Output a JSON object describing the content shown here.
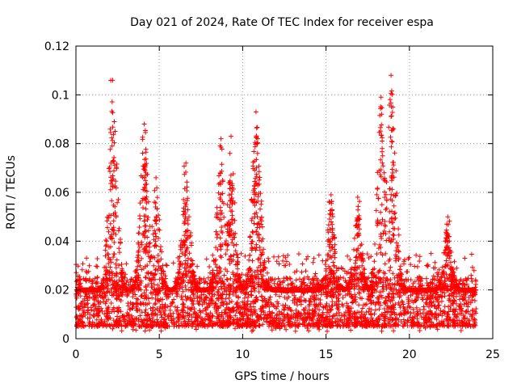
{
  "chart_data": {
    "type": "scatter",
    "title": "Day 021 of 2024, Rate Of TEC Index for receiver espa",
    "xlabel": "GPS time / hours",
    "ylabel": "ROTI / TECUs",
    "xlim": [
      0,
      25
    ],
    "ylim": [
      0,
      0.12
    ],
    "xticks": [
      0,
      5,
      10,
      15,
      20,
      25
    ],
    "xtick_labels": [
      "0",
      "5",
      "10",
      "15",
      "20",
      "25"
    ],
    "yticks": [
      0,
      0.02,
      0.04,
      0.06,
      0.08,
      0.1,
      0.12
    ],
    "ytick_labels": [
      "0",
      "0.02",
      "0.04",
      "0.06",
      "0.08",
      "0.1",
      "0.12"
    ],
    "grid": true,
    "marker": "+",
    "color": "#ff0000",
    "series": [
      {
        "name": "ROTI",
        "x_range": [
          0,
          24
        ],
        "typical_band": [
          0.005,
          0.025
        ],
        "peaks": [
          {
            "x": 2.2,
            "y": 0.106
          },
          {
            "x": 2.3,
            "y": 0.089
          },
          {
            "x": 4.1,
            "y": 0.088
          },
          {
            "x": 4.2,
            "y": 0.068
          },
          {
            "x": 4.8,
            "y": 0.066
          },
          {
            "x": 6.6,
            "y": 0.072
          },
          {
            "x": 8.7,
            "y": 0.082
          },
          {
            "x": 9.3,
            "y": 0.083
          },
          {
            "x": 10.8,
            "y": 0.093
          },
          {
            "x": 10.9,
            "y": 0.082
          },
          {
            "x": 15.3,
            "y": 0.059
          },
          {
            "x": 16.9,
            "y": 0.058
          },
          {
            "x": 18.3,
            "y": 0.099
          },
          {
            "x": 18.9,
            "y": 0.108
          },
          {
            "x": 19.0,
            "y": 0.095
          },
          {
            "x": 22.3,
            "y": 0.05
          }
        ]
      }
    ]
  }
}
